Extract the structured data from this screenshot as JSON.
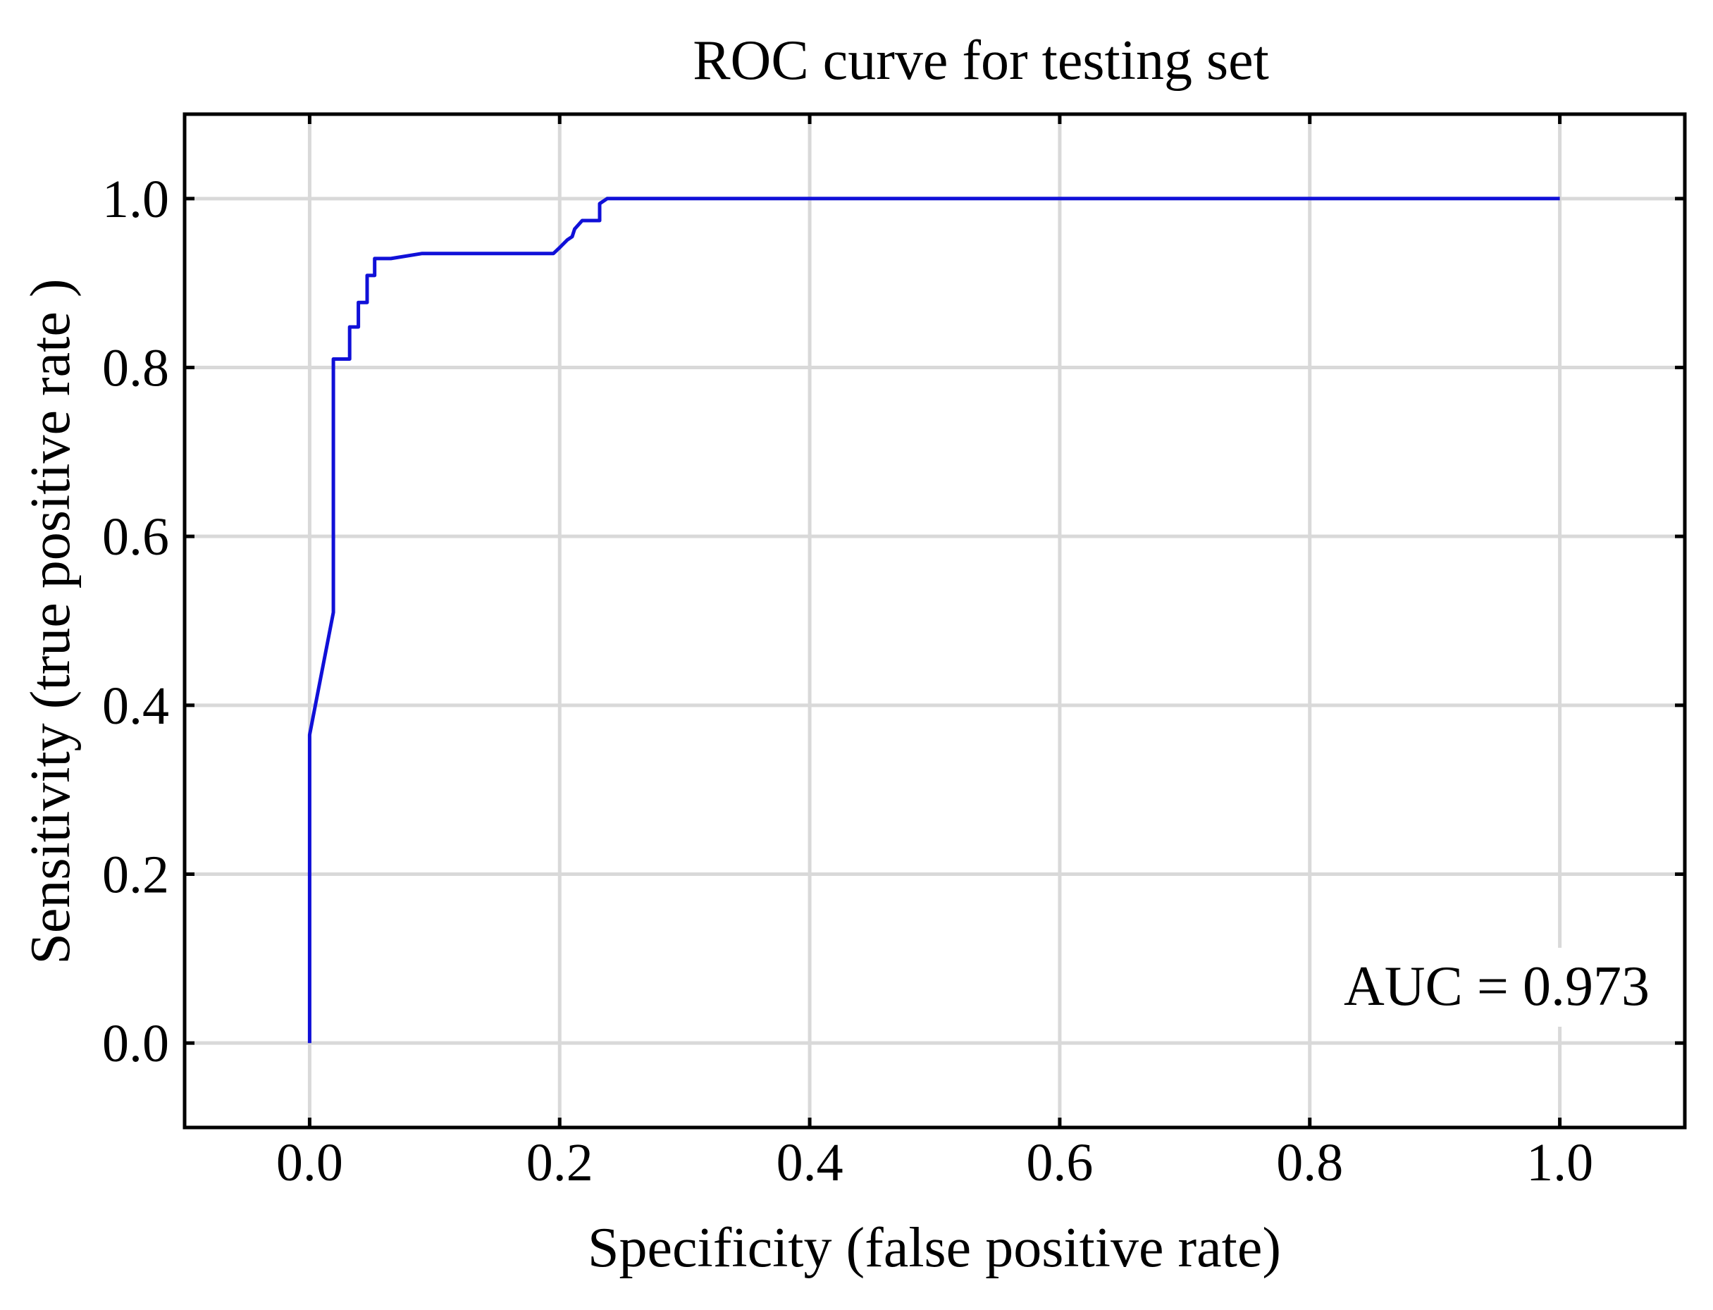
{
  "chart_data": {
    "type": "line",
    "title": "ROC curve for testing set",
    "xlabel": "Specificity (false positive rate)",
    "ylabel": "Sensitivity (true positive rate )",
    "xlim": [
      -0.1,
      1.1
    ],
    "ylim": [
      -0.1,
      1.1
    ],
    "xticks": [
      "0.0",
      "0.2",
      "0.4",
      "0.6",
      "0.8",
      "1.0"
    ],
    "yticks": [
      "0.0",
      "0.2",
      "0.4",
      "0.6",
      "0.8",
      "1.0"
    ],
    "grid": true,
    "annotation": "AUC = 0.973",
    "colors": {
      "line": "#1010d8",
      "grid": "#d9d9d9",
      "frame": "#000000"
    },
    "series": [
      {
        "x": [
          0.0,
          0.0,
          0.019,
          0.019,
          0.032,
          0.032,
          0.039,
          0.039,
          0.046,
          0.046,
          0.052,
          0.052,
          0.065,
          0.09,
          0.195,
          0.2,
          0.206,
          0.21,
          0.212,
          0.218,
          0.232,
          0.232,
          0.238,
          0.26,
          1.0
        ],
        "y": [
          0.0,
          0.365,
          0.51,
          0.81,
          0.81,
          0.848,
          0.848,
          0.877,
          0.877,
          0.909,
          0.909,
          0.929,
          0.929,
          0.935,
          0.935,
          0.942,
          0.951,
          0.955,
          0.964,
          0.974,
          0.974,
          0.994,
          1.0,
          1.0,
          1.0
        ]
      }
    ]
  }
}
